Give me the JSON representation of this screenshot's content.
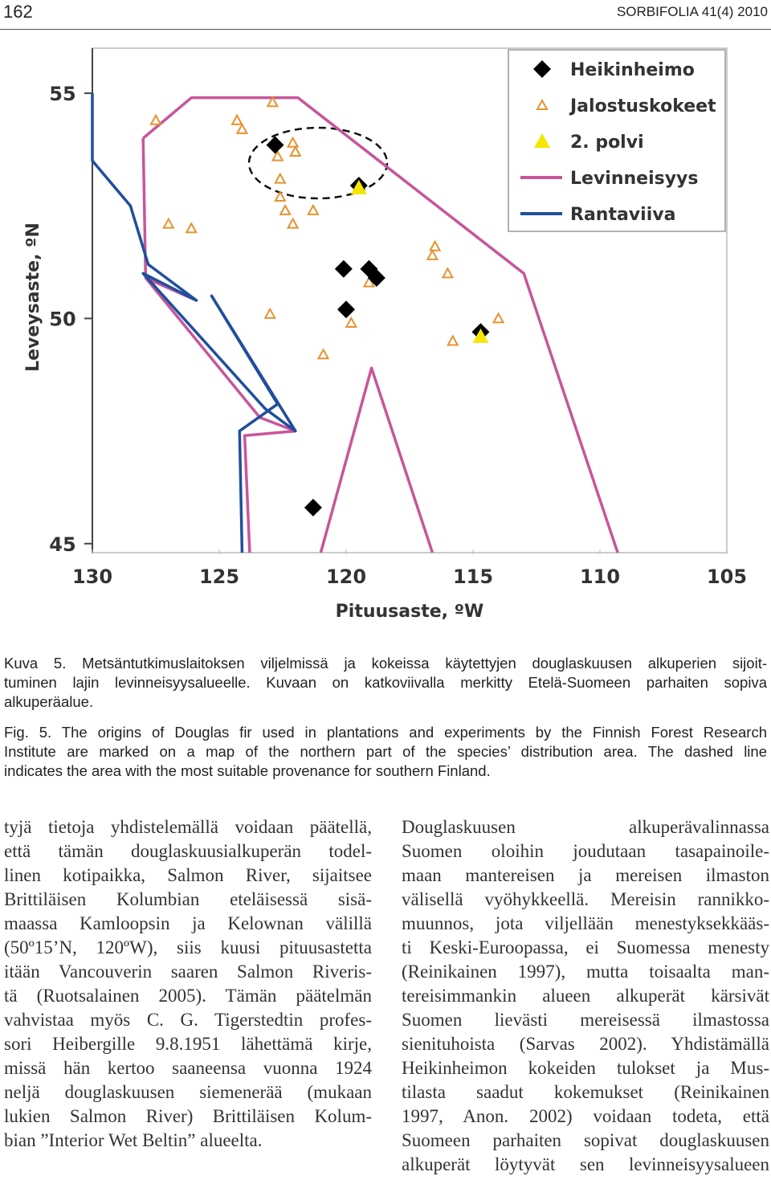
{
  "header": {
    "page_number": "162",
    "journal": "SORBIFOLIA 41(4) 2010"
  },
  "chart_data": {
    "type": "scatter",
    "xlabel": "Pituusaste, ºW",
    "ylabel": "Leveysaste, ºN",
    "xlim": [
      130,
      105
    ],
    "ylim": [
      44.8,
      56
    ],
    "xticks": [
      130,
      125,
      120,
      115,
      110,
      105
    ],
    "yticks": [
      45,
      50,
      55
    ],
    "legend": "top-right",
    "series": [
      {
        "name": "Heikinheimo",
        "type": "scatter",
        "marker": "diamond",
        "color": "#000000",
        "x": [
          122.8,
          119.5,
          120.1,
          119.1,
          118.8,
          120.0,
          114.7,
          121.3
        ],
        "y": [
          53.85,
          52.95,
          51.1,
          51.1,
          50.9,
          50.2,
          49.7,
          45.8
        ]
      },
      {
        "name": "Jalostuskokeet",
        "type": "scatter",
        "marker": "open-triangle",
        "color": "#e8922e",
        "x": [
          127.5,
          124.3,
          124.1,
          122.9,
          122.7,
          122.1,
          122.0,
          122.6,
          122.6,
          122.4,
          121.3,
          122.1,
          127.0,
          126.1,
          119.5,
          116.5,
          116.6,
          116.0,
          119.1,
          123.0,
          119.8,
          115.8,
          114.0,
          120.9
        ],
        "y": [
          54.4,
          54.4,
          54.2,
          54.8,
          53.6,
          53.9,
          53.7,
          53.1,
          52.7,
          52.4,
          52.4,
          52.1,
          52.1,
          52.0,
          52.9,
          51.6,
          51.4,
          51.0,
          50.8,
          50.1,
          49.9,
          49.5,
          50.0,
          49.2
        ]
      },
      {
        "name": "2. polvi",
        "type": "scatter",
        "marker": "triangle",
        "color": "#f5e600",
        "x": [
          119.5,
          114.7
        ],
        "y": [
          52.9,
          49.6
        ]
      },
      {
        "name": "Levinneisyys",
        "type": "line",
        "color": "#c8559a",
        "x": [
          128.0,
          126.1,
          121.9,
          113.0,
          109.3,
          null,
          128.0,
          127.9,
          125.9,
          null,
          127.9,
          123.4,
          122.0,
          null,
          125.3,
          122.0,
          124.0,
          123.8,
          null,
          121.0,
          119.0,
          116.6
        ],
        "y": [
          54.0,
          54.9,
          54.9,
          51.0,
          44.8,
          null,
          54.0,
          50.9,
          50.4,
          null,
          50.9,
          47.8,
          47.5,
          null,
          50.5,
          47.5,
          47.4,
          44.8,
          null,
          44.8,
          48.9,
          44.8
        ]
      },
      {
        "name": "Rantaviiva",
        "type": "line",
        "color": "#1f4f9e",
        "x": [
          130.0,
          130.0,
          128.5,
          127.8,
          125.9,
          128.0,
          123.2,
          122.0,
          125.3,
          122.7,
          124.2,
          124.1
        ],
        "y": [
          55.0,
          53.5,
          52.5,
          51.2,
          50.4,
          51.0,
          48.0,
          47.5,
          50.5,
          48.1,
          47.5,
          44.8
        ]
      }
    ]
  },
  "caption": {
    "finnish": [
      "Kuva 5. Metsäntutkimuslaitoksen viljelmissä ja kokeissa käytettyjen douglaskuusen alkuperien sijoit-",
      "tuminen lajin levinneisyysalueelle. Kuvaan on katkoviivalla merkitty Etelä-Suomeen parhaiten sopiva",
      "alkuperäalue."
    ],
    "english": [
      "Fig. 5. The origins of Douglas fir used in plantations and experiments by the Finnish Forest Research",
      "Institute are marked on a map of the northern part of the species’ distribution area. The dashed line",
      "indicates the area with the most suitable provenance for southern Finland."
    ]
  },
  "body": {
    "left_column": [
      "tyjä tietoja yhdistelemällä voidaan päätellä,",
      "että tämän douglaskuusialkuperän todel-",
      "linen kotipaikka, Salmon River, sijaitsee",
      "Brittiläisen Kolumbian eteläisessä sisä-",
      "maassa Kamloopsin ja Kelownan välillä",
      "(50º15’N, 120ºW), siis kuusi pituusastetta",
      "itään Vancouverin saaren Salmon Riveris-",
      "tä (Ruotsalainen 2005). Tämän päätelmän",
      "vahvistaa myös C. G. Tigerstedtin profes-",
      "sori Heibergille 9.8.1951 lähettämä kirje,",
      "missä hän kertoo saaneensa vuonna 1924",
      "neljä douglaskuusen siemenerää (mukaan",
      "lukien Salmon River) Brittiläisen Kolum-",
      "bian ”Interior Wet Beltin” alueelta."
    ],
    "right_column": [
      "Douglaskuusen alkuperävalinnassa",
      "Suomen oloihin joudutaan tasapainoile-",
      "maan mantereisen ja mereisen ilmaston",
      "välisellä vyöhykkeellä. Mereisin rannikko-",
      "muunnos, jota viljellään menestyksekkääs-",
      "ti Keski-Euroopassa, ei Suomessa menesty",
      "(Reinikainen 1997), mutta toisaalta man-",
      "tereisimmankin alueen alkuperät kärsivät",
      "Suomen lievästi mereisessä ilmastossa",
      "sienituhoista (Sarvas 2002). Yhdistämällä",
      "Heikinheimon kokeiden tulokset ja Mus-",
      "tilasta saadut kokemukset (Reinikainen",
      "1997, Anon. 2002) voidaan todeta, että",
      "Suomeen parhaiten sopivat douglaskuusen",
      "alkuperät löytyvät sen levinneisyysalueen"
    ]
  }
}
